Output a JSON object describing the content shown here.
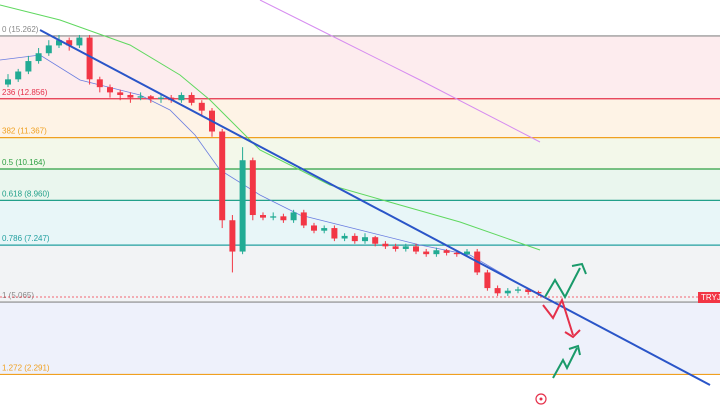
{
  "chart_data": {
    "type": "candlestick",
    "price_label": "TRYJ",
    "ylim": [
      1.12,
      16.64
    ],
    "yticks": [
      {
        "value": 15.262,
        "label": "0 (15.262)"
      },
      {
        "value": 12.856,
        "label": "236 (12.856)"
      },
      {
        "value": 11.367,
        "label": "382 (11.367)"
      },
      {
        "value": 10.164,
        "label": "0.5 (10.164)"
      },
      {
        "value": 8.96,
        "label": "0.618 (8.960)"
      },
      {
        "value": 7.247,
        "label": "0.786 (7.247)"
      },
      {
        "value": 5.065,
        "label": "1 (5.065)"
      },
      {
        "value": 2.291,
        "label": "1.272 (2.291)"
      }
    ],
    "level_colors": [
      "#888888",
      "#e5304a",
      "#f0a020",
      "#2ea043",
      "#22a08a",
      "#22a0a0",
      "#888888",
      "#f0a020"
    ],
    "band_colors": [
      "#fdecee",
      "#fef3e6",
      "#f3f8ea",
      "#eaf6ee",
      "#e8f6f8",
      "#f2f3f5",
      "#eef1fb"
    ],
    "up_color": "#22ab94",
    "down_color": "#f23645",
    "open": [
      13.4,
      13.6,
      13.9,
      14.3,
      14.6,
      14.9,
      15.1,
      14.9,
      15.2,
      13.6,
      13.3,
      13.1,
      13.0,
      12.9,
      12.95,
      12.85,
      12.9,
      12.8,
      13.0,
      12.7,
      12.4,
      11.6,
      8.2,
      7.0,
      10.5,
      8.4,
      8.3,
      8.35,
      8.2,
      8.5,
      8.0,
      7.8,
      7.9,
      7.5,
      7.6,
      7.4,
      7.55,
      7.3,
      7.2,
      7.1,
      7.2,
      7.0,
      6.9,
      7.05,
      6.95,
      6.9,
      7.0,
      6.2,
      5.6,
      5.4,
      5.5,
      5.55,
      5.45
    ],
    "high": [
      13.8,
      14.0,
      14.5,
      14.8,
      15.1,
      15.3,
      15.2,
      15.3,
      15.3,
      13.7,
      13.4,
      13.2,
      13.1,
      13.1,
      13.0,
      13.0,
      13.0,
      13.1,
      13.1,
      12.8,
      12.5,
      11.7,
      8.4,
      11.0,
      10.6,
      8.5,
      8.5,
      8.45,
      8.6,
      8.6,
      8.1,
      8.0,
      8.0,
      7.7,
      7.7,
      7.7,
      7.6,
      7.4,
      7.3,
      7.3,
      7.3,
      7.1,
      7.15,
      7.1,
      7.05,
      7.1,
      7.1,
      6.3,
      5.7,
      5.6,
      5.65,
      5.6,
      5.5
    ],
    "low": [
      13.3,
      13.5,
      13.8,
      14.2,
      14.5,
      14.8,
      14.7,
      14.8,
      13.4,
      13.1,
      12.9,
      12.8,
      12.7,
      12.8,
      12.7,
      12.7,
      12.7,
      12.7,
      12.6,
      12.2,
      11.4,
      7.9,
      6.2,
      6.9,
      8.2,
      8.2,
      8.2,
      8.1,
      8.1,
      7.9,
      7.7,
      7.7,
      7.4,
      7.4,
      7.3,
      7.3,
      7.2,
      7.1,
      7.0,
      7.0,
      6.9,
      6.8,
      6.8,
      6.85,
      6.8,
      6.8,
      6.1,
      5.5,
      5.3,
      5.3,
      5.4,
      5.35,
      5.3
    ],
    "close": [
      13.6,
      13.9,
      14.3,
      14.6,
      14.9,
      15.1,
      14.9,
      15.2,
      13.6,
      13.3,
      13.1,
      13.0,
      12.9,
      12.95,
      12.85,
      12.9,
      12.8,
      13.0,
      12.7,
      12.4,
      11.6,
      8.2,
      7.0,
      10.5,
      8.4,
      8.3,
      8.35,
      8.2,
      8.5,
      8.0,
      7.8,
      7.9,
      7.5,
      7.6,
      7.4,
      7.55,
      7.3,
      7.2,
      7.1,
      7.2,
      7.0,
      6.9,
      7.05,
      6.95,
      6.9,
      7.0,
      6.2,
      5.6,
      5.4,
      5.5,
      5.55,
      5.45,
      5.4
    ]
  }
}
